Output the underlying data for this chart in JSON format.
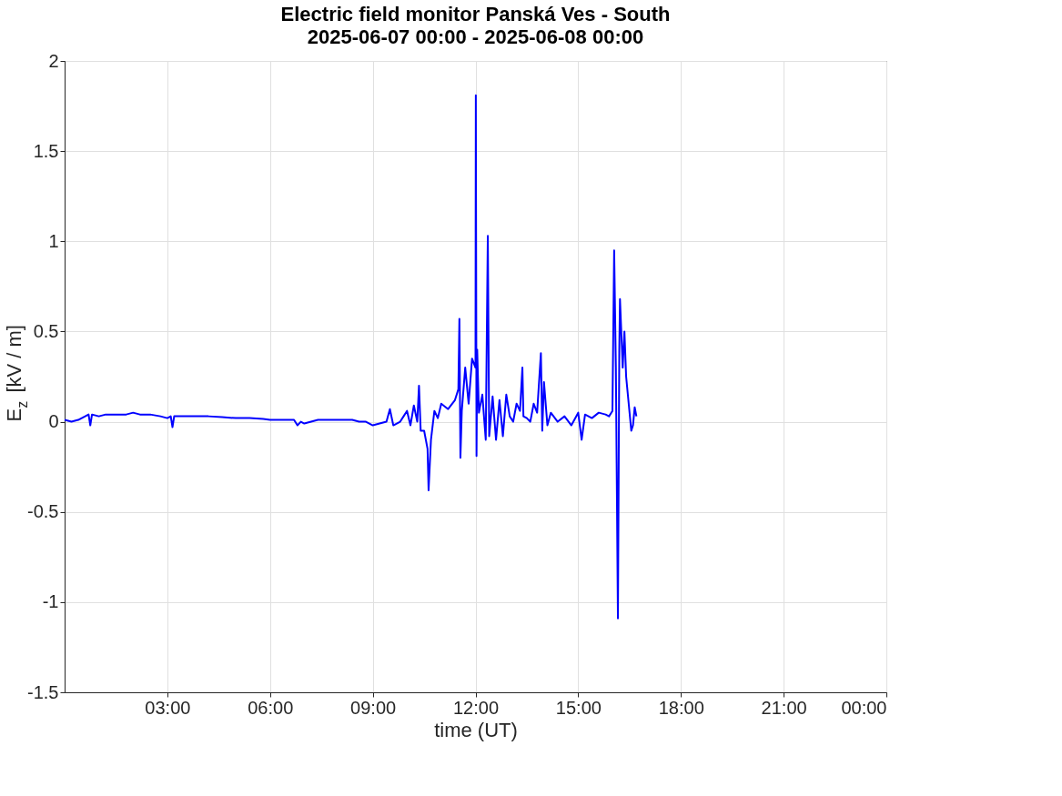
{
  "chart_data": {
    "type": "line",
    "title": "Electric field monitor Panská Ves - South",
    "subtitle": "2025-06-07 00:00 - 2025-06-08 00:00",
    "xlabel": "time (UT)",
    "ylabel": "E$_{z}$ [kV / m]",
    "x": [
      0,
      0.2,
      0.4,
      0.6,
      0.7,
      0.75,
      0.8,
      1.0,
      1.2,
      1.5,
      1.8,
      2.0,
      2.2,
      2.5,
      2.8,
      3.0,
      3.1,
      3.15,
      3.2,
      3.4,
      3.8,
      4.2,
      4.6,
      5.0,
      5.4,
      5.8,
      6.0,
      6.2,
      6.4,
      6.7,
      6.8,
      6.9,
      7.0,
      7.2,
      7.4,
      7.6,
      8.0,
      8.4,
      8.6,
      8.8,
      9.0,
      9.2,
      9.4,
      9.5,
      9.6,
      9.8,
      9.9,
      10.0,
      10.1,
      10.2,
      10.3,
      10.35,
      10.4,
      10.5,
      10.6,
      10.63,
      10.7,
      10.8,
      10.9,
      11.0,
      11.2,
      11.4,
      11.5,
      11.53,
      11.56,
      11.6,
      11.7,
      11.8,
      11.9,
      12.0,
      12.01,
      12.03,
      12.05,
      12.1,
      12.2,
      12.3,
      12.36,
      12.4,
      12.5,
      12.6,
      12.7,
      12.8,
      12.9,
      13.0,
      13.1,
      13.2,
      13.3,
      13.37,
      13.4,
      13.5,
      13.6,
      13.7,
      13.8,
      13.91,
      13.95,
      14.0,
      14.1,
      14.2,
      14.4,
      14.6,
      14.8,
      15.0,
      15.1,
      15.2,
      15.4,
      15.6,
      15.8,
      15.9,
      16.0,
      16.05,
      16.1,
      16.16,
      16.2,
      16.22,
      16.3,
      16.35,
      16.4,
      16.5,
      16.55,
      16.6,
      16.65,
      16.7
    ],
    "series": [
      {
        "color": "#0000ff",
        "values": [
          0.01,
          0.0,
          0.01,
          0.03,
          0.04,
          -0.02,
          0.04,
          0.03,
          0.04,
          0.04,
          0.04,
          0.05,
          0.04,
          0.04,
          0.03,
          0.02,
          0.03,
          -0.03,
          0.03,
          0.03,
          0.03,
          0.03,
          0.025,
          0.02,
          0.02,
          0.015,
          0.01,
          0.01,
          0.01,
          0.01,
          -0.02,
          0.0,
          -0.01,
          0.0,
          0.01,
          0.01,
          0.01,
          0.01,
          0.0,
          0.0,
          -0.02,
          -0.01,
          0.0,
          0.07,
          -0.02,
          0.0,
          0.03,
          0.06,
          -0.02,
          0.09,
          0.0,
          0.2,
          -0.05,
          -0.05,
          -0.15,
          -0.38,
          -0.1,
          0.06,
          0.02,
          0.1,
          0.07,
          0.12,
          0.18,
          0.57,
          -0.2,
          0.06,
          0.3,
          0.1,
          0.35,
          0.3,
          1.81,
          -0.19,
          0.4,
          0.05,
          0.15,
          -0.1,
          1.03,
          -0.08,
          0.14,
          -0.1,
          0.12,
          -0.08,
          0.15,
          0.03,
          0.0,
          0.1,
          0.06,
          0.3,
          0.03,
          0.02,
          0.0,
          0.1,
          0.05,
          0.38,
          -0.05,
          0.22,
          -0.02,
          0.05,
          0.0,
          0.03,
          -0.02,
          0.05,
          -0.1,
          0.04,
          0.02,
          0.05,
          0.04,
          0.03,
          0.06,
          0.95,
          0.3,
          -1.09,
          0.4,
          0.68,
          0.3,
          0.5,
          0.25,
          0.05,
          -0.05,
          -0.02,
          0.08,
          0.03
        ]
      }
    ],
    "xlim": [
      0,
      24
    ],
    "xticks": [
      {
        "value": 3,
        "label": "03:00"
      },
      {
        "value": 6,
        "label": "06:00"
      },
      {
        "value": 9,
        "label": "09:00"
      },
      {
        "value": 12,
        "label": "12:00"
      },
      {
        "value": 15,
        "label": "15:00"
      },
      {
        "value": 18,
        "label": "18:00"
      },
      {
        "value": 21,
        "label": "21:00"
      },
      {
        "value": 24,
        "label": "00:00"
      }
    ],
    "ylim": [
      -1.5,
      2
    ],
    "yticks": [
      -1.5,
      -1,
      -0.5,
      0,
      0.5,
      1,
      1.5,
      2
    ],
    "grid": true,
    "marker": "none",
    "line_style": "solid"
  }
}
